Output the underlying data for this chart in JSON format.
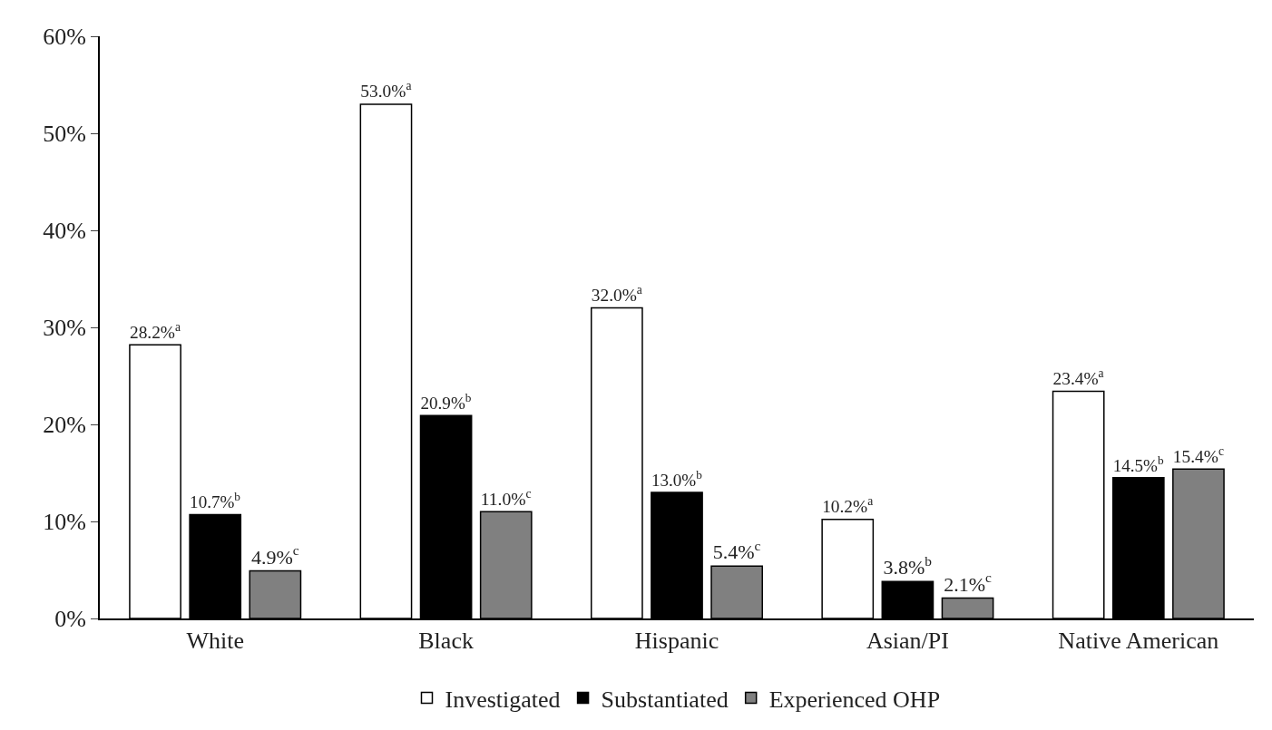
{
  "chart_data": {
    "type": "bar",
    "categories": [
      "White",
      "Black",
      "Hispanic",
      "Asian/PI",
      "Native American"
    ],
    "series": [
      {
        "name": "Investigated",
        "color": "#ffffff",
        "values": [
          28.2,
          53.0,
          32.0,
          10.2,
          23.4
        ],
        "value_labels": [
          "28.2%$^{a}$",
          "53.0%$^{a}$",
          "32.0%$^{a}$",
          "10.2%$^{a}$",
          "23.4%$^{a}$"
        ]
      },
      {
        "name": "Substantiated",
        "color": "#000000",
        "values": [
          10.7,
          20.9,
          13.0,
          3.8,
          14.5
        ],
        "value_labels": [
          "10.7%$^{b}$",
          "20.9%$^{b}$",
          "13.0%$^{b}$",
          "3.8%$^{b}$",
          "14.5%$^{b}$"
        ]
      },
      {
        "name": "Experienced OHP",
        "color": "#808080",
        "values": [
          4.9,
          11.0,
          5.4,
          2.1,
          15.4
        ],
        "value_labels": [
          "4.9%$^{c}$",
          "11.0%$^{c}$",
          "5.4%$^{c}$",
          "2.1%$^{c}$",
          "15.4%$^{c}$"
        ]
      }
    ],
    "ylim": [
      0,
      60
    ],
    "yticks": [
      {
        "value": 0,
        "label": "0%"
      },
      {
        "value": 10,
        "label": "10%"
      },
      {
        "value": 20,
        "label": "20%"
      },
      {
        "value": 30,
        "label": "30%"
      },
      {
        "value": 40,
        "label": "40%"
      },
      {
        "value": 50,
        "label": "50%"
      },
      {
        "value": 60,
        "label": "60%"
      }
    ],
    "grid": false,
    "legend": "bottom"
  }
}
